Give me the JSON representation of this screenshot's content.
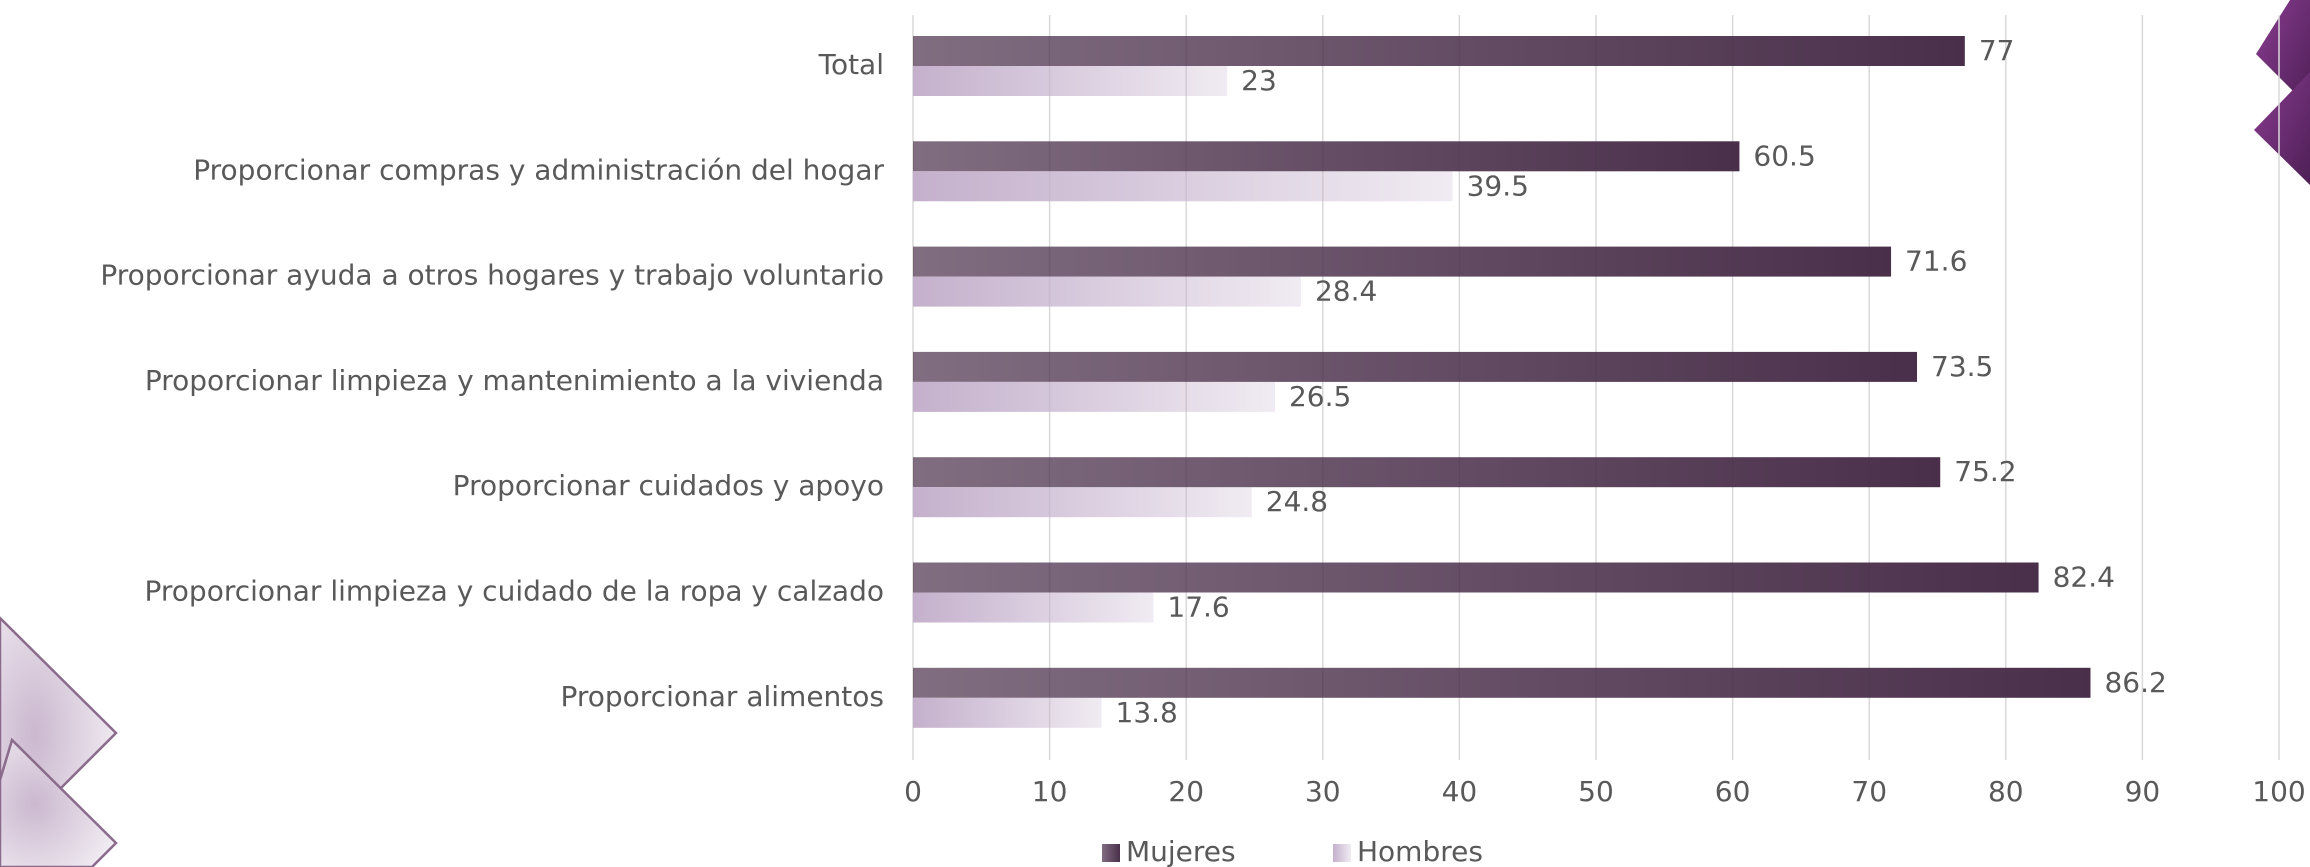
{
  "chart_data": {
    "type": "bar",
    "orientation": "horizontal",
    "categories": [
      "Total",
      "Proporcionar compras y administración del hogar",
      "Proporcionar ayuda a otros hogares y trabajo voluntario",
      "Proporcionar limpieza y mantenimiento a la vivienda",
      "Proporcionar cuidados y apoyo",
      "Proporcionar limpieza y cuidado de la ropa y calzado",
      "Proporcionar alimentos"
    ],
    "series": [
      {
        "name": "Mujeres",
        "color": "#4a2f4a",
        "values": [
          77,
          60.5,
          71.6,
          73.5,
          75.2,
          82.4,
          86.2
        ]
      },
      {
        "name": "Hombres",
        "color": "#c4b0cc",
        "values": [
          23,
          39.5,
          28.4,
          26.5,
          24.8,
          17.6,
          13.8
        ]
      }
    ],
    "xlim": [
      0,
      100
    ],
    "xticks": [
      0,
      10,
      20,
      30,
      40,
      50,
      60,
      70,
      80,
      90,
      100
    ],
    "grid": true,
    "legend": "bottom"
  }
}
